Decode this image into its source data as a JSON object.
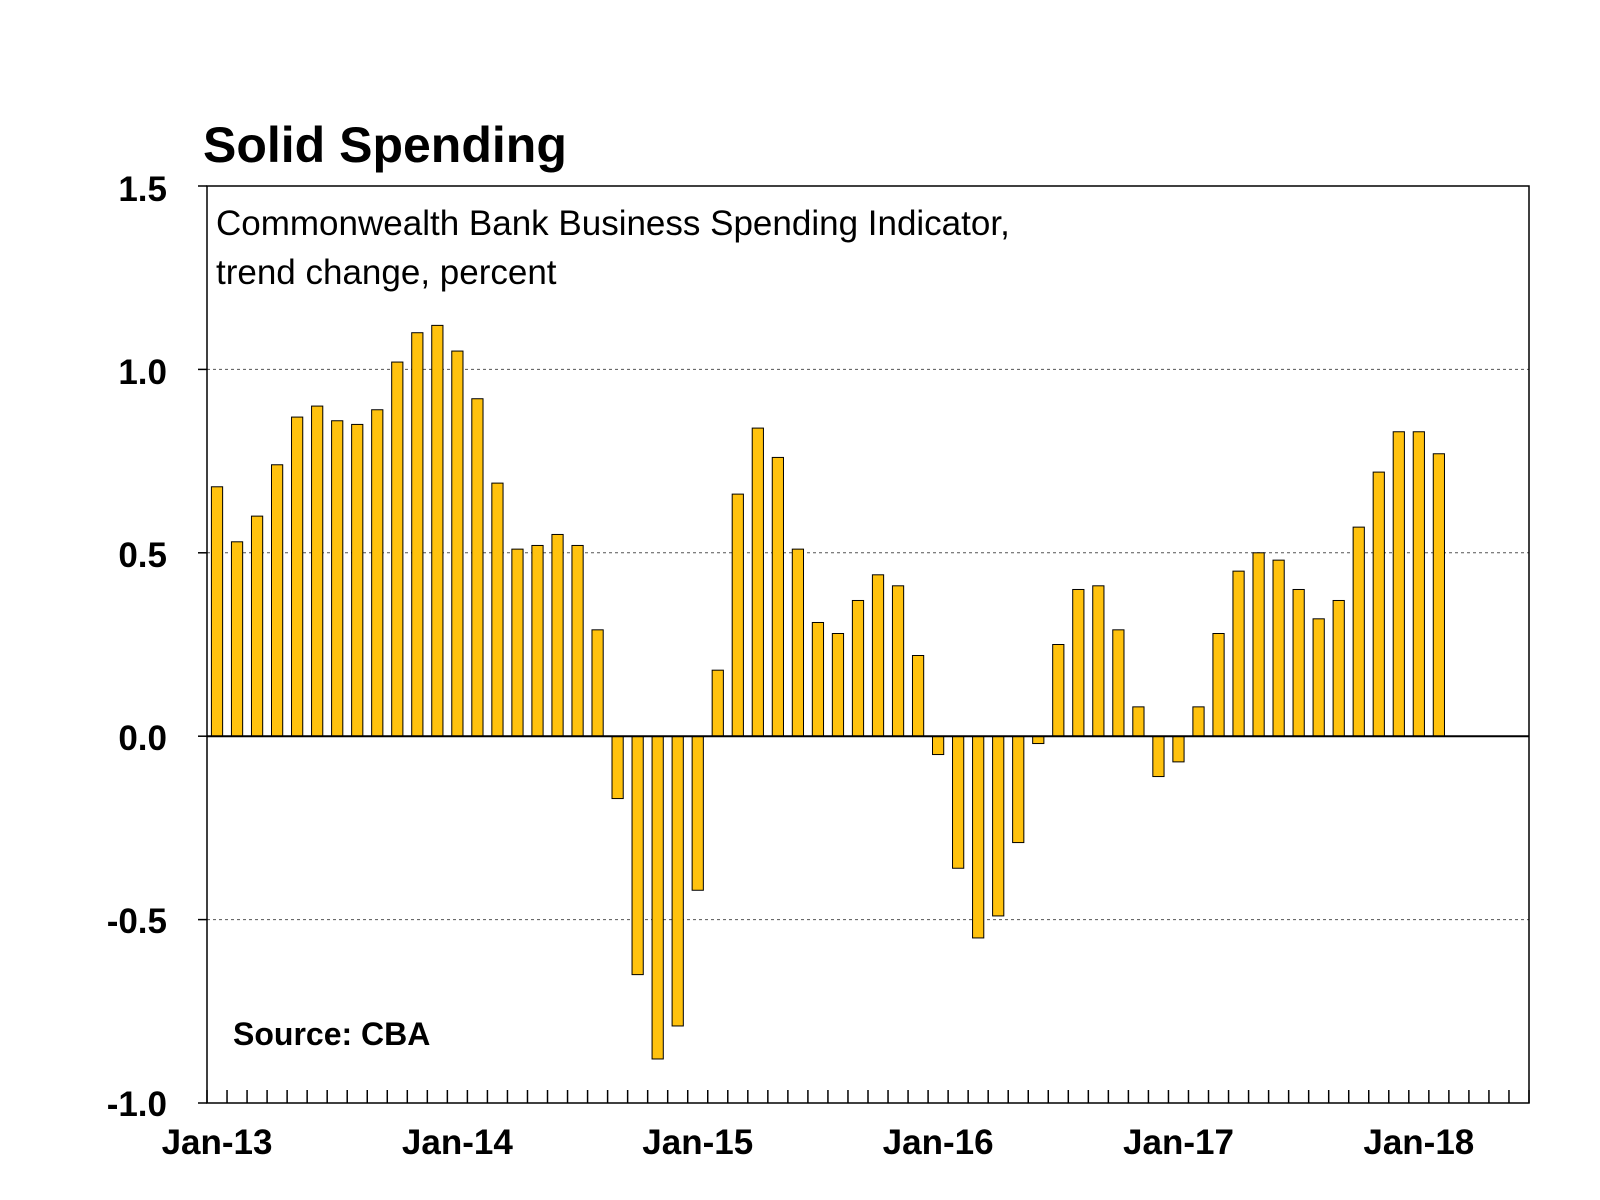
{
  "chart_data": {
    "type": "bar",
    "title": "Solid Spending",
    "subtitle_lines": [
      "Commonwealth Bank Business Spending Indicator,",
      "trend change, percent"
    ],
    "source": "Source: CBA",
    "xlabel": "",
    "ylabel": "",
    "ylim": [
      -1.0,
      1.5
    ],
    "yticks": [
      "1.5",
      "1.0",
      "0.5",
      "0.0",
      "-0.5",
      "-1.0"
    ],
    "ytick_values": [
      1.5,
      1.0,
      0.5,
      0.0,
      -0.5,
      -1.0
    ],
    "xtick_labels": [
      "Jan-13",
      "Jan-14",
      "Jan-15",
      "Jan-16",
      "Jan-17",
      "Jan-18"
    ],
    "xtick_months": [
      "2013-01",
      "2014-01",
      "2015-01",
      "2016-01",
      "2017-01",
      "2018-01"
    ],
    "x_range": [
      "2013-01",
      "2018-06"
    ],
    "grid": "horizontal dashed",
    "bar_color": "#FFC20E",
    "categories": [
      "2013-01",
      "2013-02",
      "2013-03",
      "2013-04",
      "2013-05",
      "2013-06",
      "2013-07",
      "2013-08",
      "2013-09",
      "2013-10",
      "2013-11",
      "2013-12",
      "2014-01",
      "2014-02",
      "2014-03",
      "2014-04",
      "2014-05",
      "2014-06",
      "2014-07",
      "2014-08",
      "2014-09",
      "2014-10",
      "2014-11",
      "2014-12",
      "2015-01",
      "2015-02",
      "2015-03",
      "2015-04",
      "2015-05",
      "2015-06",
      "2015-07",
      "2015-08",
      "2015-09",
      "2015-10",
      "2015-11",
      "2015-12",
      "2016-01",
      "2016-02",
      "2016-03",
      "2016-04",
      "2016-05",
      "2016-06",
      "2016-07",
      "2016-08",
      "2016-09",
      "2016-10",
      "2016-11",
      "2016-12",
      "2017-01",
      "2017-02",
      "2017-03",
      "2017-04",
      "2017-05",
      "2017-06",
      "2017-07",
      "2017-08",
      "2017-09",
      "2017-10",
      "2017-11",
      "2017-12",
      "2018-01",
      "2018-02"
    ],
    "values": [
      0.68,
      0.53,
      0.6,
      0.74,
      0.87,
      0.9,
      0.86,
      0.85,
      0.89,
      1.02,
      1.1,
      1.12,
      1.05,
      0.92,
      0.69,
      0.51,
      0.52,
      0.55,
      0.52,
      0.29,
      -0.17,
      -0.65,
      -0.88,
      -0.79,
      -0.42,
      0.18,
      0.66,
      0.84,
      0.76,
      0.51,
      0.31,
      0.28,
      0.37,
      0.44,
      0.41,
      0.22,
      -0.05,
      -0.36,
      -0.55,
      -0.49,
      -0.29,
      -0.02,
      0.25,
      0.4,
      0.41,
      0.29,
      0.08,
      -0.11,
      -0.07,
      0.08,
      0.28,
      0.45,
      0.5,
      0.48,
      0.4,
      0.32,
      0.37,
      0.57,
      0.72,
      0.83,
      0.83,
      0.77
    ]
  }
}
